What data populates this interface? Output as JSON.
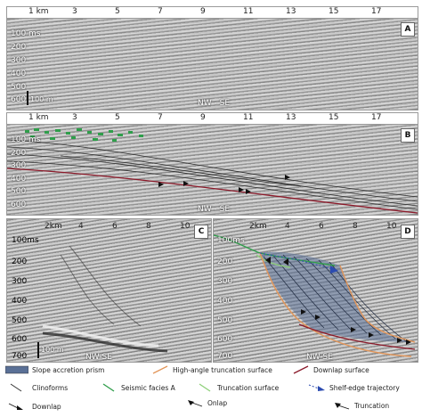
{
  "panel_a": {
    "km_ticks": [
      "1 km",
      "3",
      "5",
      "7",
      "9",
      "11",
      "13",
      "15",
      "17"
    ],
    "depth_ticks": [
      "100 ms",
      "200",
      "300",
      "400",
      "500",
      "600"
    ],
    "letter": "A",
    "scale": "100 m",
    "direction": "NW - SE"
  },
  "panel_b": {
    "km_ticks": [
      "1 km",
      "3",
      "5",
      "7",
      "9",
      "11",
      "13",
      "15",
      "17"
    ],
    "depth_ticks": [
      "100 ms",
      "200",
      "300",
      "400",
      "500",
      "600"
    ],
    "letter": "B",
    "direction": "NW - SE"
  },
  "panel_c": {
    "km_ticks": [
      "2km",
      "4",
      "6",
      "8",
      "10"
    ],
    "depth_ticks": [
      "100ms",
      "200",
      "300",
      "400",
      "500",
      "600",
      "700"
    ],
    "letter": "C",
    "scale": "100 m",
    "direction": "NW-SE"
  },
  "panel_d": {
    "km_ticks": [
      "2km",
      "4",
      "6",
      "8",
      "10"
    ],
    "depth_ticks": [
      "100ms",
      "200",
      "300",
      "400",
      "500",
      "600",
      "700"
    ],
    "letter": "D",
    "direction": "NW-SE"
  },
  "legend": {
    "slope_prism": "Slope accretion prism",
    "high_angle": "High-angle truncation surface",
    "downlap_surface": "Downlap surface",
    "clinoforms": "Clinoforms",
    "seismic_facies": "Seismic facies A",
    "truncation_surface": "Truncation surface",
    "shelf_edge": "Shelf-edge trajectory",
    "downlap": "Downlap",
    "onlap": "Onlap",
    "truncation": "Truncation"
  },
  "colors": {
    "prism": "#5a7096",
    "high_angle": "#e2965a",
    "downlap_surface": "#8b1a2a",
    "facies": "#2e9e4a",
    "truncation_surface": "#8fd07a",
    "shelf_edge": "#2b4bb0"
  }
}
